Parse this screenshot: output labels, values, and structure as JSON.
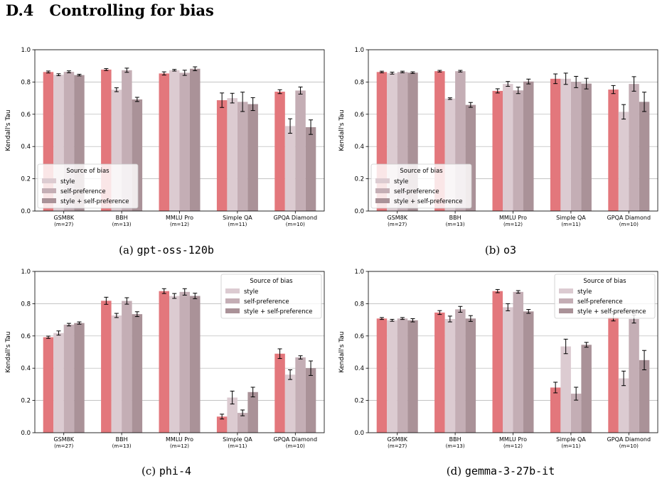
{
  "section": {
    "number": "D.4",
    "title": "Controlling for bias"
  },
  "colors": {
    "baseline": "#e3777c",
    "style": "#dccbd1",
    "self_preference": "#c4aeb5",
    "style_self_preference": "#aa9298",
    "error_bar": "#000000",
    "grid": "#b0b0b0"
  },
  "chart_data": [
    {
      "type": "bar",
      "caption_prefix": "(a) ",
      "caption_model": "gpt-oss-120b",
      "ylabel": "Kendall's Tau",
      "ylim": [
        0,
        1.0
      ],
      "yticks": [
        "0.0",
        "0.2",
        "0.4",
        "0.6",
        "0.8",
        "1.0"
      ],
      "grid": true,
      "legend": {
        "title": "Source of bias",
        "placement": "lower-left",
        "entries": [
          "style",
          "self-preference",
          "style + self-preference"
        ]
      },
      "categories": [
        "GSM8K",
        "BBH",
        "MMLU Pro",
        "Simple QA",
        "GPQA Diamond"
      ],
      "category_sub": [
        "(m=27)",
        "(m=13)",
        "(m=12)",
        "(m=11)",
        "(m=10)"
      ],
      "series": [
        {
          "values": [
            0.862,
            0.877,
            0.853,
            0.687,
            0.74
          ],
          "errors": [
            0.006,
            0.006,
            0.01,
            0.045,
            0.012
          ]
        },
        {
          "name": "style",
          "values": [
            0.845,
            0.752,
            0.873,
            0.7,
            0.527
          ],
          "errors": [
            0.006,
            0.012,
            0.005,
            0.03,
            0.045
          ]
        },
        {
          "name": "self-preference",
          "values": [
            0.863,
            0.873,
            0.857,
            0.677,
            0.747
          ],
          "errors": [
            0.006,
            0.013,
            0.016,
            0.06,
            0.022
          ]
        },
        {
          "name": "style + self-preference",
          "values": [
            0.843,
            0.692,
            0.882,
            0.663,
            0.52
          ],
          "errors": [
            0.005,
            0.013,
            0.012,
            0.04,
            0.045
          ]
        }
      ]
    },
    {
      "type": "bar",
      "caption_prefix": "(b) ",
      "caption_model": "o3",
      "ylabel": "Kendall's Tau",
      "ylim": [
        0,
        1.0
      ],
      "yticks": [
        "0.0",
        "0.2",
        "0.4",
        "0.6",
        "0.8",
        "1.0"
      ],
      "grid": true,
      "legend": {
        "title": "Source of bias",
        "placement": "lower-left",
        "entries": [
          "style",
          "self-preference",
          "style + self-preference"
        ]
      },
      "categories": [
        "GSM8K",
        "BBH",
        "MMLU Pro",
        "Simple QA",
        "GPQA Diamond"
      ],
      "category_sub": [
        "(m=27)",
        "(m=13)",
        "(m=12)",
        "(m=11)",
        "(m=10)"
      ],
      "series": [
        {
          "values": [
            0.862,
            0.867,
            0.745,
            0.82,
            0.753
          ],
          "errors": [
            0.005,
            0.005,
            0.013,
            0.03,
            0.025
          ]
        },
        {
          "name": "style",
          "values": [
            0.855,
            0.697,
            0.788,
            0.82,
            0.615
          ],
          "errors": [
            0.006,
            0.005,
            0.015,
            0.035,
            0.045
          ]
        },
        {
          "name": "self-preference",
          "values": [
            0.862,
            0.867,
            0.748,
            0.8,
            0.788
          ],
          "errors": [
            0.005,
            0.005,
            0.02,
            0.035,
            0.045
          ]
        },
        {
          "name": "style + self-preference",
          "values": [
            0.858,
            0.658,
            0.803,
            0.79,
            0.677
          ],
          "errors": [
            0.005,
            0.015,
            0.015,
            0.033,
            0.06
          ]
        }
      ]
    },
    {
      "type": "bar",
      "caption_prefix": "(c) ",
      "caption_model": "phi-4",
      "ylabel": "Kendall's Tau",
      "ylim": [
        0,
        1.0
      ],
      "yticks": [
        "0.0",
        "0.2",
        "0.4",
        "0.6",
        "0.8",
        "1.0"
      ],
      "grid": true,
      "legend": {
        "title": "Source of bias",
        "placement": "top-right",
        "entries": [
          "style",
          "self-preference",
          "style + self-preference"
        ]
      },
      "categories": [
        "GSM8K",
        "BBH",
        "MMLU Pro",
        "Simple QA",
        "GPQA Diamond"
      ],
      "category_sub": [
        "(m=27)",
        "(m=13)",
        "(m=12)",
        "(m=11)",
        "(m=10)"
      ],
      "series": [
        {
          "values": [
            0.592,
            0.818,
            0.878,
            0.1,
            0.49
          ],
          "errors": [
            0.007,
            0.022,
            0.015,
            0.015,
            0.03
          ]
        },
        {
          "name": "style",
          "values": [
            0.618,
            0.727,
            0.848,
            0.218,
            0.36
          ],
          "errors": [
            0.013,
            0.013,
            0.015,
            0.04,
            0.03
          ]
        },
        {
          "name": "self-preference",
          "values": [
            0.67,
            0.817,
            0.873,
            0.123,
            0.467
          ],
          "errors": [
            0.008,
            0.02,
            0.02,
            0.018,
            0.01
          ]
        },
        {
          "name": "style + self-preference",
          "values": [
            0.68,
            0.735,
            0.848,
            0.252,
            0.4
          ],
          "errors": [
            0.007,
            0.015,
            0.017,
            0.03,
            0.045
          ]
        }
      ]
    },
    {
      "type": "bar",
      "caption_prefix": "(d) ",
      "caption_model": "gemma-3-27b-it",
      "ylabel": "Kendall's Tau",
      "ylim": [
        0,
        1.0
      ],
      "yticks": [
        "0.0",
        "0.2",
        "0.4",
        "0.6",
        "0.8",
        "1.0"
      ],
      "grid": true,
      "legend": {
        "title": "Source of bias",
        "placement": "top-right",
        "entries": [
          "style",
          "self-preference",
          "style + self-preference"
        ]
      },
      "categories": [
        "GSM8K",
        "BBH",
        "MMLU Pro",
        "Simple QA",
        "GPQA Diamond"
      ],
      "category_sub": [
        "(m=27)",
        "(m=13)",
        "(m=12)",
        "(m=11)",
        "(m=10)"
      ],
      "series": [
        {
          "values": [
            0.708,
            0.745,
            0.878,
            0.28,
            0.715
          ],
          "errors": [
            0.006,
            0.012,
            0.01,
            0.033,
            0.022
          ]
        },
        {
          "name": "style",
          "values": [
            0.697,
            0.705,
            0.778,
            0.535,
            0.337
          ],
          "errors": [
            0.006,
            0.018,
            0.022,
            0.045,
            0.045
          ]
        },
        {
          "name": "self-preference",
          "values": [
            0.708,
            0.765,
            0.873,
            0.242,
            0.705
          ],
          "errors": [
            0.006,
            0.018,
            0.008,
            0.04,
            0.025
          ]
        },
        {
          "name": "style + self-preference",
          "values": [
            0.697,
            0.708,
            0.752,
            0.545,
            0.45
          ],
          "errors": [
            0.01,
            0.018,
            0.012,
            0.015,
            0.06
          ]
        }
      ]
    }
  ]
}
